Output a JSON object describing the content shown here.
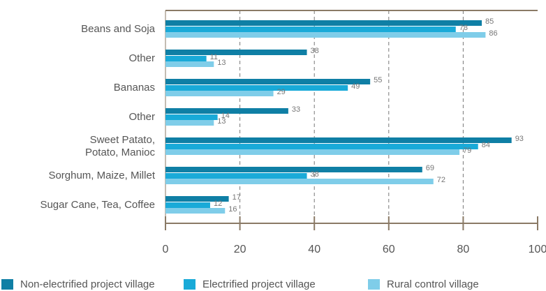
{
  "chart_data": {
    "type": "hbar",
    "categories": [
      "Beans and Soja",
      "Other",
      "Bananas",
      "Other",
      "Sweet Patato,\nPotato, Manioc",
      "Sorghum, Maize, Millet",
      "Sugar Cane, Tea, Coffee"
    ],
    "series": [
      {
        "name": "Non-electrified project village",
        "color": "#0f7fa5",
        "values": [
          85,
          38,
          55,
          33,
          93,
          69,
          17
        ]
      },
      {
        "name": "Electrified project village",
        "color": "#19aad8",
        "values": [
          78,
          11,
          49,
          14,
          84,
          38,
          12
        ]
      },
      {
        "name": "Rural control village",
        "color": "#7fcde9",
        "values": [
          86,
          13,
          29,
          13,
          79,
          72,
          16
        ]
      }
    ],
    "xlim": [
      0,
      100
    ],
    "xticks": [
      0,
      20,
      40,
      60,
      80,
      100
    ],
    "grid": true
  }
}
